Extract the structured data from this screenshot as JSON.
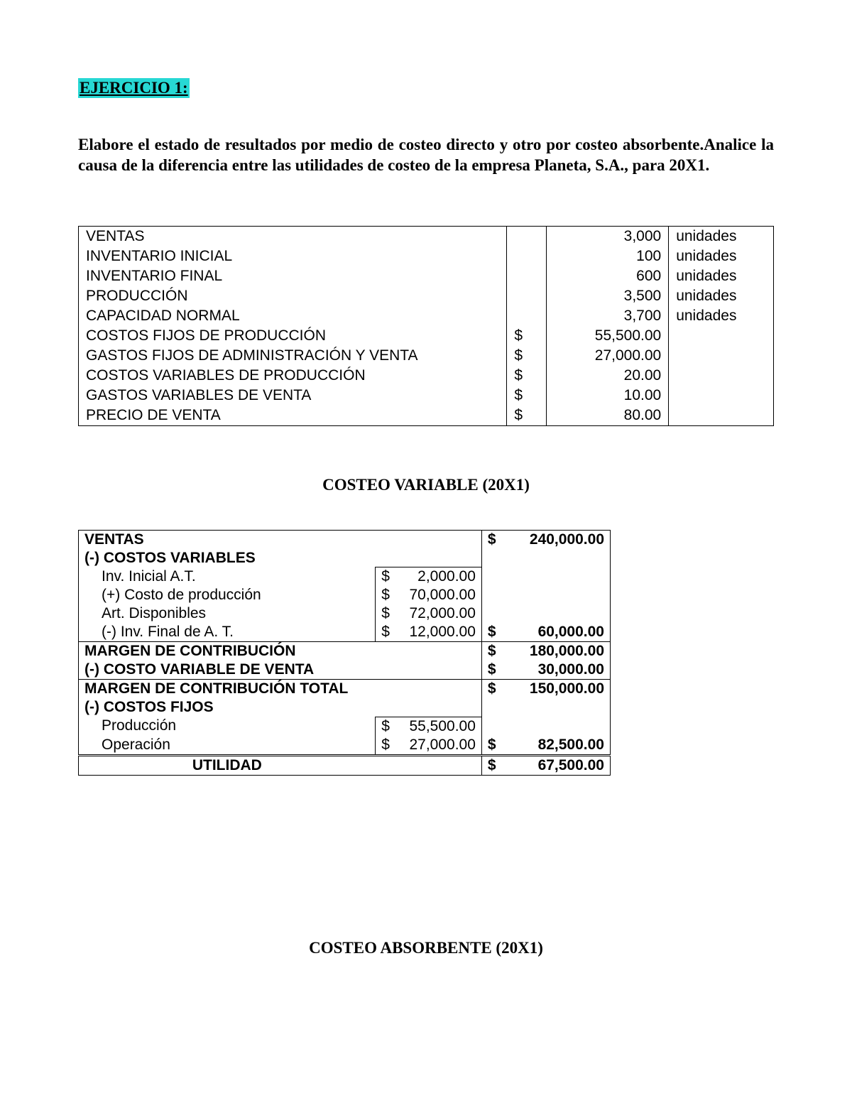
{
  "colors": {
    "highlight_bg": "#27d8d4",
    "text": "#000000",
    "page_bg": "#ffffff",
    "border": "#000000"
  },
  "exercise_title": "EJERCICIO 1:",
  "instructions": "Elabore el estado de resultados por medio de costeo directo y otro por costeo absorbente.Analice la causa de la diferencia entre las utilidades de costeo de la empresa Planeta, S.A., para 20X1.",
  "data_table": {
    "rows": [
      {
        "label": "VENTAS",
        "currency": "",
        "value": "3,000",
        "unit": "unidades"
      },
      {
        "label": "INVENTARIO INICIAL",
        "currency": "",
        "value": "100",
        "unit": "unidades"
      },
      {
        "label": "INVENTARIO FINAL",
        "currency": "",
        "value": "600",
        "unit": "unidades"
      },
      {
        "label": "PRODUCCIÓN",
        "currency": "",
        "value": "3,500",
        "unit": "unidades"
      },
      {
        "label": "CAPACIDAD NORMAL",
        "currency": "",
        "value": "3,700",
        "unit": "unidades"
      },
      {
        "label": "COSTOS FIJOS DE PRODUCCIÓN",
        "currency": "$",
        "value": "55,500.00",
        "unit": ""
      },
      {
        "label": "GASTOS FIJOS DE ADMINISTRACIÓN Y VENTA",
        "currency": "$",
        "value": "27,000.00",
        "unit": ""
      },
      {
        "label": "COSTOS VARIABLES DE PRODUCCIÓN",
        "currency": "$",
        "value": "20.00",
        "unit": ""
      },
      {
        "label": "GASTOS VARIABLES DE VENTA",
        "currency": "$",
        "value": "10.00",
        "unit": ""
      },
      {
        "label": "PRECIO DE VENTA",
        "currency": "$",
        "value": "80.00",
        "unit": ""
      }
    ]
  },
  "costeo_variable": {
    "heading": "COSTEO VARIABLE (20X1)",
    "rows": [
      {
        "kind": "head",
        "label": "VENTAS",
        "c1": "",
        "v1": "",
        "c2": "$",
        "v2": "240,000.00"
      },
      {
        "kind": "head",
        "label": "(-) COSTOS VARIABLES",
        "c1": "",
        "v1": "",
        "c2": "",
        "v2": ""
      },
      {
        "kind": "sub",
        "label": "Inv. Inicial A.T.",
        "c1": "$",
        "v1": "2,000.00",
        "c2": "",
        "v2": ""
      },
      {
        "kind": "sub",
        "label": "(+) Costo de producción",
        "c1": "$",
        "v1": "70,000.00",
        "c2": "",
        "v2": ""
      },
      {
        "kind": "sub",
        "label": "Art. Disponibles",
        "c1": "$",
        "v1": "72,000.00",
        "c2": "",
        "v2": ""
      },
      {
        "kind": "sub",
        "label": "(-) Inv. Final de A. T.",
        "c1": "$",
        "v1": "12,000.00",
        "c2": "$",
        "v2": "60,000.00"
      },
      {
        "kind": "head",
        "label": "MARGEN DE CONTRIBUCIÓN",
        "c1": "",
        "v1": "",
        "c2": "$",
        "v2": "180,000.00"
      },
      {
        "kind": "head",
        "label": "(-) COSTO VARIABLE DE VENTA",
        "c1": "",
        "v1": "",
        "c2": "$",
        "v2": "30,000.00"
      },
      {
        "kind": "head",
        "label": "MARGEN DE CONTRIBUCIÓN TOTAL",
        "c1": "",
        "v1": "",
        "c2": "$",
        "v2": "150,000.00"
      },
      {
        "kind": "head",
        "label": "(-) COSTOS FIJOS",
        "c1": "",
        "v1": "",
        "c2": "",
        "v2": ""
      },
      {
        "kind": "sub",
        "label": "Producción",
        "c1": "$",
        "v1": "55,500.00",
        "c2": "",
        "v2": ""
      },
      {
        "kind": "sub",
        "label": "Operación",
        "c1": "$",
        "v1": "27,000.00",
        "c2": "$",
        "v2": "82,500.00"
      },
      {
        "kind": "total",
        "label": "UTILIDAD",
        "c1": "",
        "v1": "",
        "c2": "$",
        "v2": "67,500.00"
      }
    ]
  },
  "costeo_absorbente": {
    "heading": "COSTEO ABSORBENTE (20X1)"
  }
}
